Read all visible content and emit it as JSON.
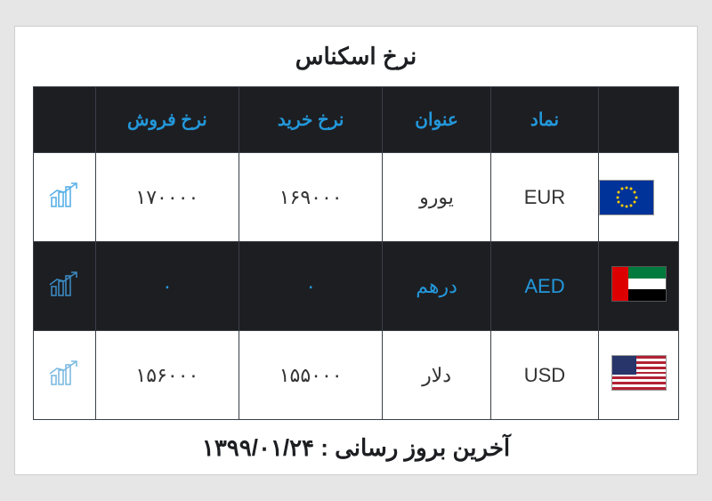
{
  "title": "نرخ اسکناس",
  "headers": {
    "sell": "نرخ فروش",
    "buy": "نرخ خرید",
    "name": "عنوان",
    "code": "نماد"
  },
  "rows": [
    {
      "sell": "۱۷۰۰۰۰",
      "buy": "۱۶۹۰۰۰",
      "name": "یورو",
      "code": "EUR",
      "flag": "eu",
      "rowClass": "light",
      "iconColor": "#5ab1e6"
    },
    {
      "sell": "۰",
      "buy": "۰",
      "name": "درهم",
      "code": "AED",
      "flag": "ae",
      "rowClass": "dark",
      "iconColor": "#3a88bf"
    },
    {
      "sell": "۱۵۶۰۰۰",
      "buy": "۱۵۵۰۰۰",
      "name": "دلار",
      "code": "USD",
      "flag": "us",
      "rowClass": "light",
      "iconColor": "#7fbbe0"
    }
  ],
  "footer": "آخرین بروز رسانی : ۱۳۹۹/۰۱/۲۴"
}
